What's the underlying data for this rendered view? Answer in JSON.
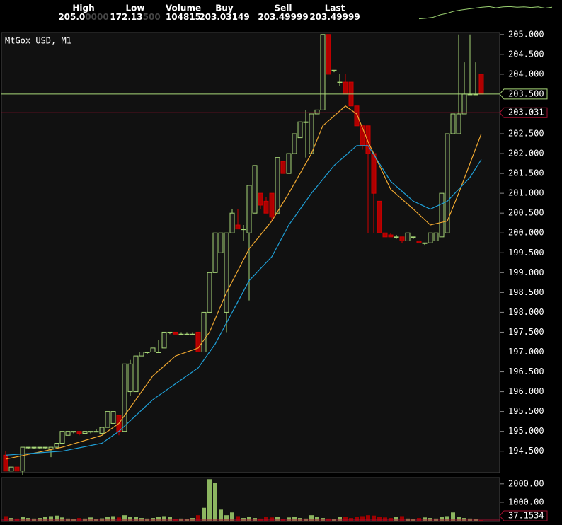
{
  "header": {
    "fields": [
      {
        "label": "High",
        "value": "205.0",
        "dim": "0000"
      },
      {
        "label": "Low",
        "value": "172.13",
        "dim": "500"
      },
      {
        "label": "Volume",
        "value": "104815"
      },
      {
        "label": "Buy",
        "value": "203.03149"
      },
      {
        "label": "Sell",
        "value": "203.49999"
      },
      {
        "label": "Last",
        "value": "203.49999"
      }
    ]
  },
  "sparkline": {
    "color": "#9ad070",
    "ylim": [
      200,
      206
    ],
    "values": [
      201,
      201.2,
      201.5,
      202.3,
      202.8,
      203.5,
      203.9,
      204.2,
      204.5,
      204.8,
      205,
      204.6,
      204.9,
      205,
      204.8,
      204.9,
      204.7,
      204.9,
      204.5,
      204.8
    ]
  },
  "chart_data": {
    "type": "candlestick",
    "title": "MtGox USD, M1",
    "up_color": "#a8d878",
    "down_color": "#b00000",
    "ylim": [
      193.96,
      205.05
    ],
    "yticks": [
      {
        "value": 194.5,
        "label": "194.500"
      },
      {
        "value": 195,
        "label": "195.000"
      },
      {
        "value": 195.5,
        "label": "195.500"
      },
      {
        "value": 196,
        "label": "196.000"
      },
      {
        "value": 196.5,
        "label": "196.500"
      },
      {
        "value": 197,
        "label": "197.000"
      },
      {
        "value": 197.5,
        "label": "197.500"
      },
      {
        "value": 198,
        "label": "198.000"
      },
      {
        "value": 198.5,
        "label": "198.500"
      },
      {
        "value": 199,
        "label": "199.000"
      },
      {
        "value": 199.5,
        "label": "199.500"
      },
      {
        "value": 200,
        "label": "200.000"
      },
      {
        "value": 200.5,
        "label": "200.500"
      },
      {
        "value": 201,
        "label": "201.000"
      },
      {
        "value": 201.5,
        "label": "201.500"
      },
      {
        "value": 202,
        "label": "202.000"
      },
      {
        "value": 202.5,
        "label": "202.500"
      },
      {
        "value": 203,
        "label": "203.000"
      },
      {
        "value": 203.5,
        "label": "203.500"
      },
      {
        "value": 204,
        "label": "204.000"
      },
      {
        "value": 204.5,
        "label": "204.500"
      },
      {
        "value": 205,
        "label": "205.000"
      }
    ],
    "candles": [
      [
        194.4,
        194.5,
        194.0,
        194.0
      ],
      [
        194.0,
        194.1,
        194.0,
        194.1
      ],
      [
        194.1,
        194.1,
        194.0,
        194.0
      ],
      [
        194.0,
        194.6,
        193.9,
        194.6
      ],
      [
        194.6,
        194.6,
        194.55,
        194.6
      ],
      [
        194.6,
        194.6,
        194.55,
        194.6
      ],
      [
        194.6,
        194.6,
        194.55,
        194.6
      ],
      [
        194.6,
        194.6,
        194.55,
        194.6
      ],
      [
        194.55,
        194.6,
        194.35,
        194.6
      ],
      [
        194.6,
        194.7,
        194.55,
        194.7
      ],
      [
        194.7,
        195.0,
        194.7,
        195.0
      ],
      [
        194.9,
        195.0,
        194.9,
        195.0
      ],
      [
        195.0,
        195.0,
        194.95,
        195.0
      ],
      [
        195.0,
        195.0,
        194.9,
        194.95
      ],
      [
        194.95,
        195.0,
        194.95,
        195.0
      ],
      [
        195.0,
        195.0,
        194.95,
        195.0
      ],
      [
        195.0,
        195.05,
        195.0,
        195.0
      ],
      [
        194.95,
        195.1,
        194.95,
        195.1
      ],
      [
        195.1,
        195.5,
        195.1,
        195.5
      ],
      [
        195.2,
        195.5,
        195.2,
        195.5
      ],
      [
        195.4,
        195.4,
        194.9,
        195.0
      ],
      [
        195.0,
        196.7,
        195.0,
        196.7
      ],
      [
        196.0,
        196.8,
        195.9,
        196.7
      ],
      [
        196.0,
        196.9,
        196.0,
        196.9
      ],
      [
        196.9,
        197.0,
        196.9,
        197.0
      ],
      [
        197.0,
        197.0,
        196.95,
        197.0
      ],
      [
        197.0,
        197.1,
        197.0,
        197.1
      ],
      [
        197.0,
        197.3,
        197.0,
        197.0
      ],
      [
        197.1,
        197.5,
        197.1,
        197.5
      ],
      [
        197.5,
        197.5,
        197.45,
        197.5
      ],
      [
        197.5,
        197.5,
        197.45,
        197.45
      ],
      [
        197.45,
        197.5,
        197.45,
        197.45
      ],
      [
        197.45,
        197.5,
        197.45,
        197.45
      ],
      [
        197.45,
        197.5,
        197.45,
        197.45
      ],
      [
        197.5,
        197.5,
        197.0,
        197.0
      ],
      [
        197.0,
        198.0,
        197.0,
        198.0
      ],
      [
        198.0,
        199.0,
        198.0,
        199.0
      ],
      [
        199.0,
        200.0,
        199.0,
        200.0
      ],
      [
        199.5,
        200.0,
        199.5,
        200.0
      ],
      [
        198.0,
        200.0,
        197.5,
        200.0
      ],
      [
        200.0,
        200.6,
        200.0,
        200.5
      ],
      [
        200.2,
        200.6,
        200.1,
        200.1
      ],
      [
        200.1,
        200.2,
        199.8,
        200.1
      ],
      [
        200.0,
        201.2,
        198.3,
        201.2
      ],
      [
        200.5,
        201.7,
        200.5,
        201.7
      ],
      [
        201.0,
        201.0,
        200.6,
        200.7
      ],
      [
        200.8,
        200.9,
        200.5,
        200.5
      ],
      [
        201.0,
        201.0,
        200.3,
        200.4
      ],
      [
        200.5,
        201.9,
        200.5,
        201.9
      ],
      [
        201.8,
        201.8,
        201.5,
        201.5
      ],
      [
        201.5,
        202.0,
        201.5,
        202.0
      ],
      [
        202.0,
        202.5,
        202.0,
        202.5
      ],
      [
        202.4,
        202.8,
        202.4,
        202.8
      ],
      [
        202.8,
        203.1,
        201.9,
        202.8
      ],
      [
        202.0,
        203.0,
        202.0,
        203.0
      ],
      [
        203.0,
        203.1,
        203.0,
        203.1
      ],
      [
        203.1,
        205.0,
        203.1,
        205.0
      ],
      [
        205.0,
        205.0,
        204.0,
        204.0
      ],
      [
        204.1,
        204.1,
        204.05,
        204.1
      ],
      [
        203.8,
        204.0,
        203.7,
        203.8
      ],
      [
        203.8,
        204.0,
        203.5,
        203.5
      ],
      [
        203.8,
        203.8,
        203.2,
        203.2
      ],
      [
        203.2,
        203.2,
        202.7,
        202.7
      ],
      [
        202.7,
        202.7,
        202.1,
        202.2
      ],
      [
        202.7,
        202.7,
        200.0,
        202.0
      ],
      [
        202.0,
        202.0,
        200.0,
        201.0
      ],
      [
        200.8,
        200.8,
        200.0,
        200.0
      ],
      [
        200.0,
        200.0,
        199.9,
        199.9
      ],
      [
        199.95,
        200.0,
        199.9,
        199.9
      ],
      [
        199.9,
        199.95,
        199.85,
        199.9
      ],
      [
        199.9,
        199.9,
        199.75,
        199.8
      ],
      [
        199.8,
        200.0,
        199.8,
        200.0
      ],
      [
        199.9,
        199.9,
        199.85,
        199.9
      ],
      [
        199.8,
        199.8,
        199.75,
        199.75
      ],
      [
        199.75,
        199.75,
        199.7,
        199.75
      ],
      [
        199.75,
        200.0,
        199.75,
        200.0
      ],
      [
        199.8,
        200.0,
        199.8,
        200.0
      ],
      [
        199.9,
        201.0,
        199.9,
        201.0
      ],
      [
        200.0,
        202.5,
        200.0,
        202.5
      ],
      [
        202.5,
        203.0,
        202.5,
        203.0
      ],
      [
        202.5,
        205.0,
        202.5,
        203.0
      ],
      [
        203.0,
        204.3,
        203.0,
        203.5
      ],
      [
        203.5,
        205.0,
        203.5,
        203.5
      ],
      [
        203.5,
        204.3,
        203.5,
        203.5
      ],
      [
        204.0,
        204.0,
        203.5,
        203.5
      ]
    ],
    "series": [
      {
        "color": "#f0a830",
        "x": [
          0,
          10,
          17,
          20,
          23,
          26,
          30,
          34,
          36,
          39,
          43,
          47,
          50,
          54,
          56,
          60,
          62,
          64,
          68,
          72,
          75,
          78,
          80,
          84
        ],
        "values": [
          194.3,
          194.6,
          194.9,
          195.2,
          195.8,
          196.4,
          196.9,
          197.1,
          197.5,
          198.5,
          199.6,
          200.3,
          201.0,
          202.0,
          202.7,
          203.2,
          203.0,
          202.3,
          201.1,
          200.6,
          200.2,
          200.3,
          201.0,
          202.5
        ]
      },
      {
        "color": "#1fa0d8",
        "x": [
          0,
          10,
          17,
          20,
          23,
          26,
          30,
          34,
          37,
          40,
          43,
          47,
          50,
          54,
          58,
          62,
          64,
          68,
          72,
          75,
          78,
          82,
          84
        ],
        "values": [
          194.4,
          194.5,
          194.7,
          195.0,
          195.4,
          195.8,
          196.2,
          196.6,
          197.2,
          198.0,
          198.8,
          199.4,
          200.2,
          201.0,
          201.7,
          202.2,
          202.2,
          201.3,
          200.8,
          200.6,
          200.8,
          201.4,
          201.85
        ]
      }
    ],
    "price_lines": [
      {
        "value": 203.5,
        "label": "203.500",
        "color": "#a8d878"
      },
      {
        "value": 203.031,
        "label": "203.031",
        "color": "#a01030"
      }
    ],
    "volume": {
      "ylim": [
        0,
        2300
      ],
      "yticks": [
        {
          "value": 2000,
          "label": "2000.00"
        },
        {
          "value": 1000,
          "label": "1000.00"
        }
      ],
      "current": {
        "value": 37.1534,
        "color": "#a01030"
      },
      "values": [
        250,
        150,
        120,
        200,
        150,
        120,
        150,
        200,
        250,
        280,
        180,
        120,
        100,
        150,
        120,
        180,
        100,
        130,
        200,
        250,
        180,
        300,
        200,
        220,
        150,
        120,
        150,
        200,
        250,
        200,
        100,
        120,
        80,
        150,
        300,
        700,
        2250,
        2050,
        600,
        300,
        450,
        250,
        150,
        200,
        150,
        120,
        200,
        180,
        220,
        100,
        180,
        220,
        150,
        120,
        300,
        200,
        150,
        120,
        100,
        200,
        220,
        150,
        200,
        250,
        300,
        280,
        200,
        180,
        150,
        200,
        250,
        120,
        100,
        150,
        180,
        150,
        120,
        200,
        250,
        450,
        200,
        150,
        120,
        100,
        37.1534
      ]
    }
  }
}
